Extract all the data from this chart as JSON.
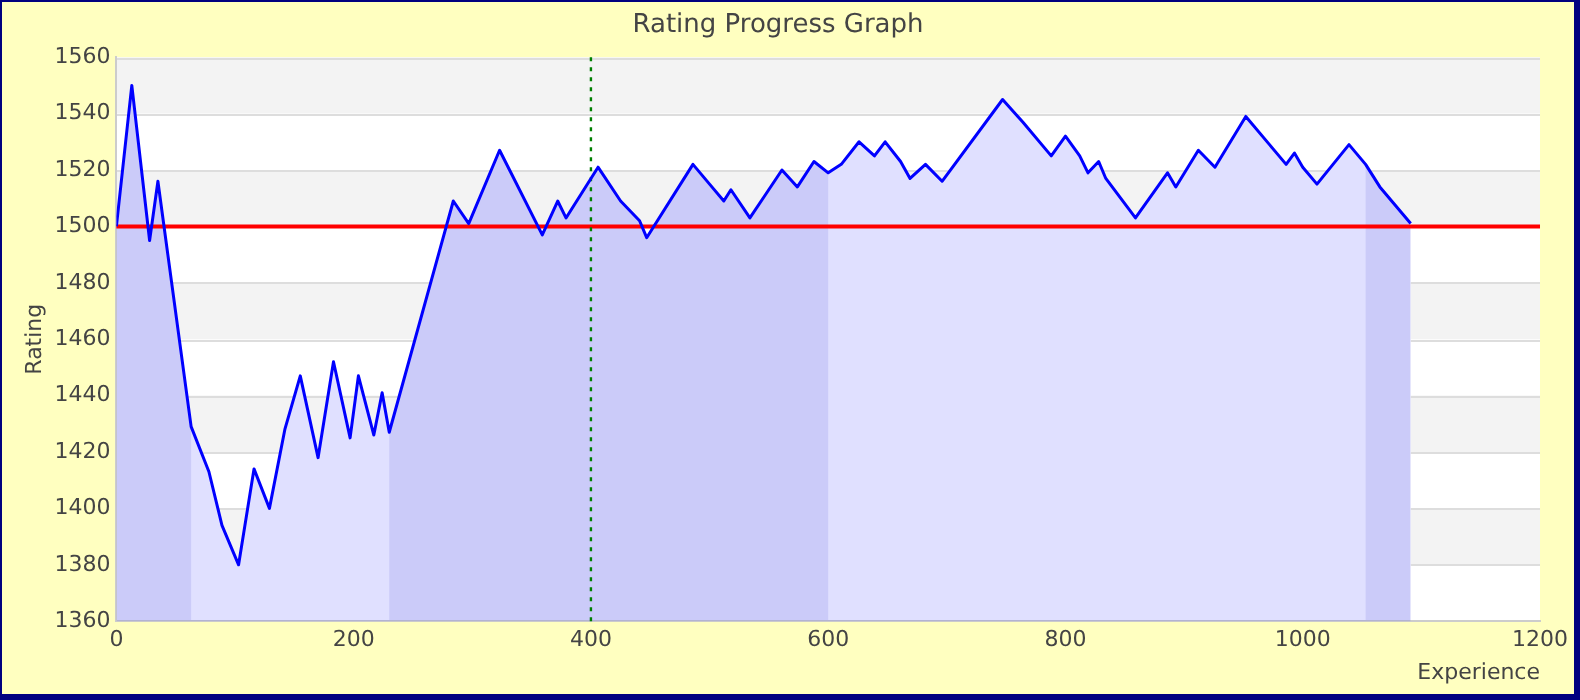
{
  "chart_data": {
    "type": "area",
    "title": "Rating Progress Graph",
    "xlabel": "Experience",
    "ylabel": "Rating",
    "x": [
      0,
      13,
      28,
      35,
      63,
      78,
      89,
      103,
      116,
      129,
      142,
      155,
      170,
      183,
      197,
      204,
      217,
      224,
      230,
      284,
      297,
      323,
      359,
      372,
      379,
      406,
      425,
      441,
      447,
      486,
      500,
      512,
      518,
      534,
      561,
      574,
      588,
      600,
      611,
      626,
      639,
      648,
      661,
      669,
      682,
      696,
      747,
      764,
      788,
      800,
      812,
      819,
      828,
      834,
      859,
      886,
      893,
      912,
      926,
      952,
      972,
      986,
      993,
      1000,
      1012,
      1039,
      1053,
      1065,
      1091
    ],
    "series": [
      {
        "color": "#0000ff",
        "values": [
          1500,
          1550,
          1495,
          1516,
          1429,
          1413,
          1394,
          1380,
          1414,
          1400,
          1428,
          1447,
          1418,
          1452,
          1425,
          1447,
          1426,
          1441,
          1427,
          1509,
          1501,
          1527,
          1497,
          1509,
          1503,
          1521,
          1509,
          1502,
          1496,
          1522,
          1515,
          1509,
          1513,
          1503,
          1520,
          1514,
          1523,
          1519,
          1522,
          1530,
          1525,
          1530,
          1523,
          1517,
          1522,
          1516,
          1545,
          1537,
          1525,
          1532,
          1525,
          1519,
          1523,
          1517,
          1503,
          1519,
          1514,
          1527,
          1521,
          1539,
          1529,
          1522,
          1526,
          1521,
          1515,
          1529,
          1522,
          1514,
          1501
        ]
      }
    ],
    "xlim": [
      0,
      1200
    ],
    "xticks": [
      0,
      200,
      400,
      600,
      800,
      1000,
      1200
    ],
    "ylim": [
      1360,
      1560
    ],
    "yticks": [
      1360,
      1380,
      1400,
      1420,
      1440,
      1460,
      1480,
      1500,
      1520,
      1540,
      1560
    ],
    "ref_lines": [
      {
        "axis": "y",
        "value": 1500,
        "color": "#ff0000",
        "line_style": "solid"
      },
      {
        "axis": "x",
        "value": 400,
        "color": "#008000",
        "line_style": "dotted"
      }
    ],
    "bands": [
      {
        "axis": "x",
        "from": 0,
        "to": 63,
        "color": "#e8e8f9"
      },
      {
        "axis": "x",
        "from": 230,
        "to": 600,
        "color": "#e8e8f9"
      },
      {
        "axis": "x",
        "from": 1053,
        "to": 1091,
        "color": "#e8e8f9"
      }
    ],
    "grid": "y",
    "legend": false,
    "marker": "none",
    "line_style": "solid"
  }
}
